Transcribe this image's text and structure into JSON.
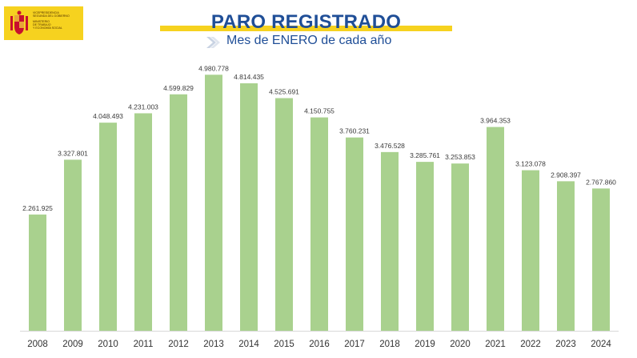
{
  "header": {
    "title": "PARO REGISTRADO",
    "subtitle": "Mes de ENERO de cada año",
    "accent_color": "#f6d21f",
    "title_color": "#1f4e97",
    "chevron_icon": "chevron-right-icon"
  },
  "logo": {
    "emblem_icon": "coat-of-arms-icon",
    "lines": [
      "VICEPRESIDENCIA",
      "SEGUNDA DEL GOBIERNO",
      "MINISTERIO",
      "DE TRABAJO",
      "Y ECONOMÍA SOCIAL"
    ]
  },
  "chart_data": {
    "type": "bar",
    "title": "",
    "xlabel": "",
    "ylabel": "",
    "ylim": [
      0,
      5500000
    ],
    "grid": false,
    "bar_color": "#a9d18e",
    "categories": [
      "2008",
      "2009",
      "2010",
      "2011",
      "2012",
      "2013",
      "2014",
      "2015",
      "2016",
      "2017",
      "2018",
      "2019",
      "2020",
      "2021",
      "2022",
      "2023",
      "2024"
    ],
    "values": [
      2261925,
      3327801,
      4048493,
      4231003,
      4599829,
      4980778,
      4814435,
      4525691,
      4150755,
      3760231,
      3476528,
      3285761,
      3253853,
      3964353,
      3123078,
      2908397,
      2767860
    ],
    "value_labels": [
      "2.261.925",
      "3.327.801",
      "4.048.493",
      "4.231.003",
      "4.599.829",
      "4.980.778",
      "4.814.435",
      "4.525.691",
      "4.150.755",
      "3.760.231",
      "3.476.528",
      "3.285.761",
      "3.253.853",
      "3.964.353",
      "3.123.078",
      "2.908.397",
      "2.767.860"
    ]
  }
}
